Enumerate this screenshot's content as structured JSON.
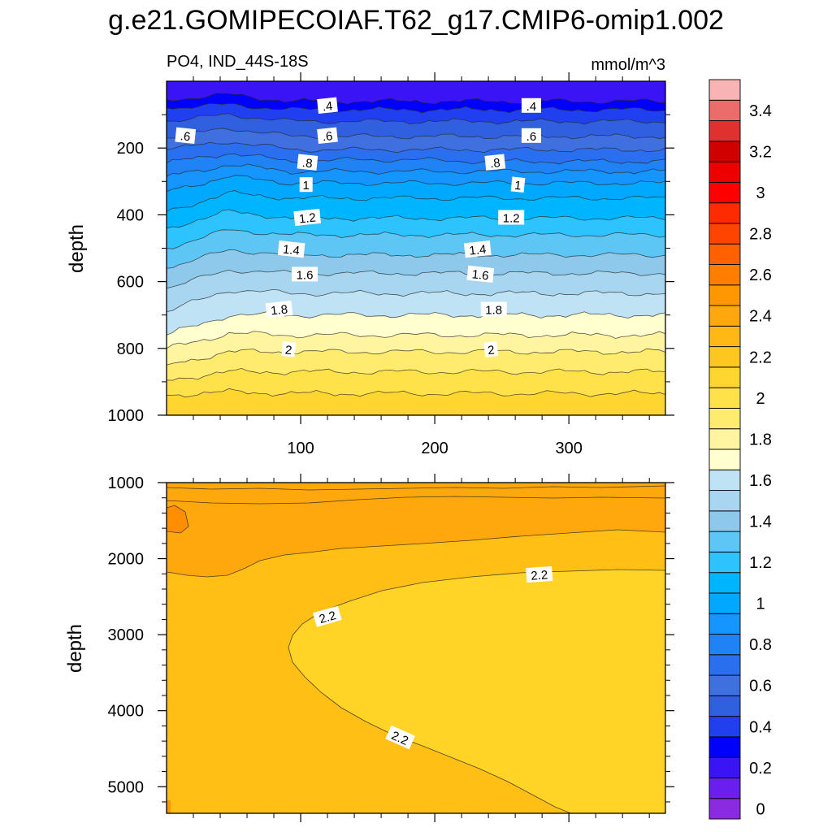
{
  "chart_data": {
    "type": "contour",
    "title": "g.e21.GOMIPECOIAF.T62_g17.CMIP6-omip1.002",
    "colorbar": {
      "levels": [
        0,
        0.1,
        0.2,
        0.3,
        0.4,
        0.5,
        0.6,
        0.7,
        0.8,
        0.9,
        1.0,
        1.1,
        1.2,
        1.3,
        1.4,
        1.5,
        1.6,
        1.7,
        1.8,
        1.9,
        2.0,
        2.1,
        2.2,
        2.3,
        2.4,
        2.5,
        2.6,
        2.7,
        2.8,
        2.9,
        3.0,
        3.1,
        3.2,
        3.3,
        3.4,
        3.5
      ],
      "tick_labels": [
        "0",
        "0.2",
        "0.4",
        "0.6",
        "0.8",
        "1",
        "1.2",
        "1.4",
        "1.6",
        "1.8",
        "2",
        "2.2",
        "2.4",
        "2.6",
        "2.8",
        "3",
        "3.2",
        "3.4"
      ],
      "colors": [
        "#8a2be2",
        "#6a1ef0",
        "#3a14f5",
        "#0000ff",
        "#2040f0",
        "#3060e0",
        "#4070e0",
        "#2a6ff0",
        "#1f82f5",
        "#1595ff",
        "#00a8ff",
        "#00b5ff",
        "#2cc3ff",
        "#5ec6f5",
        "#8ec9ec",
        "#a8d6f0",
        "#bfe2f5",
        "#ffffd0",
        "#fff4a0",
        "#ffeb6e",
        "#ffe24a",
        "#ffd630",
        "#ffc620",
        "#ffb814",
        "#ffa80e",
        "#ff9800",
        "#ff7e00",
        "#ff6000",
        "#ff4400",
        "#ff2a00",
        "#ff0000",
        "#ee0000",
        "#d00000",
        "#e03030",
        "#ec6c6c",
        "#f8b4b4"
      ]
    },
    "panels": [
      {
        "id": "upper",
        "left_title": "PO4, IND_44S-18S",
        "right_title": "mmol/m^3",
        "ylabel": "depth",
        "xlim": [
          0,
          372
        ],
        "ylim": [
          1000,
          0
        ],
        "x_ticks": [
          100,
          200,
          300
        ],
        "y_ticks": [
          200,
          400,
          600,
          800,
          1000
        ],
        "contour_lines": [
          {
            "value": 0.3,
            "depth": [
              55,
              40,
              60,
              60,
              60,
              60,
              60,
              60,
              60
            ]
          },
          {
            "value": 0.4,
            "depth": [
              80,
              70,
              85,
              85,
              85,
              85,
              85,
              85,
              85
            ]
          },
          {
            "value": 0.5,
            "depth": [
              120,
              100,
              120,
              120,
              120,
              120,
              120,
              120,
              120
            ]
          },
          {
            "value": 0.6,
            "depth": [
              170,
              140,
              165,
              165,
              165,
              165,
              165,
              165,
              165
            ]
          },
          {
            "value": 0.7,
            "depth": [
              205,
              180,
              205,
              205,
              205,
              205,
              205,
              205,
              205
            ]
          },
          {
            "value": 0.8,
            "depth": [
              245,
              215,
              240,
              235,
              235,
              240,
              240,
              240,
              240
            ]
          },
          {
            "value": 0.9,
            "depth": [
              285,
              250,
              270,
              270,
              270,
              270,
              270,
              270,
              270
            ]
          },
          {
            "value": 1.0,
            "depth": [
              330,
              285,
              305,
              305,
              305,
              305,
              305,
              305,
              305
            ]
          },
          {
            "value": 1.1,
            "depth": [
              390,
              335,
              350,
              350,
              350,
              350,
              350,
              350,
              350
            ]
          },
          {
            "value": 1.2,
            "depth": [
              440,
              390,
              410,
              410,
              410,
              410,
              410,
              410,
              410
            ]
          },
          {
            "value": 1.3,
            "depth": [
              500,
              445,
              460,
              460,
              460,
              460,
              460,
              460,
              460
            ]
          },
          {
            "value": 1.4,
            "depth": [
              560,
              505,
              520,
              520,
              520,
              520,
              520,
              520,
              520
            ]
          },
          {
            "value": 1.5,
            "depth": [
              620,
              565,
              575,
              575,
              575,
              575,
              575,
              575,
              575
            ]
          },
          {
            "value": 1.6,
            "depth": [
              690,
              625,
              635,
              635,
              635,
              635,
              635,
              635,
              635
            ]
          },
          {
            "value": 1.7,
            "depth": [
              760,
              700,
              700,
              700,
              700,
              700,
              700,
              700,
              700
            ]
          },
          {
            "value": 1.8,
            "depth": [
              800,
              755,
              760,
              760,
              760,
              760,
              760,
              760,
              760
            ]
          },
          {
            "value": 1.9,
            "depth": [
              850,
              810,
              810,
              810,
              810,
              810,
              810,
              810,
              810
            ]
          },
          {
            "value": 2.0,
            "depth": [
              895,
              870,
              870,
              870,
              870,
              870,
              870,
              870,
              870
            ]
          },
          {
            "value": 2.1,
            "depth": [
              940,
              930,
              935,
              935,
              935,
              935,
              935,
              935,
              935
            ]
          }
        ],
        "contour_labels": [
          {
            "text": ".4",
            "x": 120,
            "y": 75
          },
          {
            "text": ".4",
            "x": 272,
            "y": 75
          },
          {
            "text": ".6",
            "x": 14,
            "y": 165
          },
          {
            "text": ".6",
            "x": 120,
            "y": 165
          },
          {
            "text": ".6",
            "x": 272,
            "y": 165
          },
          {
            "text": ".8",
            "x": 105,
            "y": 245
          },
          {
            "text": ".8",
            "x": 245,
            "y": 245
          },
          {
            "text": "1",
            "x": 104,
            "y": 312
          },
          {
            "text": "1",
            "x": 262,
            "y": 312
          },
          {
            "text": "1.2",
            "x": 105,
            "y": 410
          },
          {
            "text": "1.2",
            "x": 257,
            "y": 410
          },
          {
            "text": "1.4",
            "x": 93,
            "y": 505
          },
          {
            "text": "1.4",
            "x": 232,
            "y": 505
          },
          {
            "text": "1.6",
            "x": 103,
            "y": 580
          },
          {
            "text": "1.6",
            "x": 234,
            "y": 580
          },
          {
            "text": "1.8",
            "x": 84,
            "y": 685
          },
          {
            "text": "1.8",
            "x": 244,
            "y": 685
          },
          {
            "text": "2",
            "x": 91,
            "y": 805
          },
          {
            "text": "2",
            "x": 242,
            "y": 805
          }
        ]
      },
      {
        "id": "lower",
        "ylabel": "depth",
        "xlim": [
          0,
          372
        ],
        "ylim": [
          5350,
          1000
        ],
        "y_ticks": [
          1000,
          2000,
          3000,
          4000,
          5000
        ],
        "contour_labels": [
          {
            "text": "2.2",
            "x": 278,
            "y": 2218
          },
          {
            "text": "2.2",
            "x": 120,
            "y": 2770
          },
          {
            "text": "2.2",
            "x": 174,
            "y": 4360
          }
        ]
      }
    ]
  }
}
